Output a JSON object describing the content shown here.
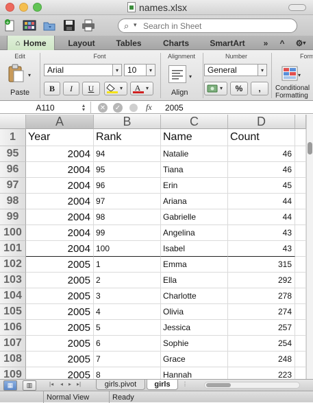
{
  "window": {
    "title": "names.xlsx"
  },
  "toolbar": {
    "icons": [
      "new-workbook-icon",
      "templates-icon",
      "open-icon",
      "save-icon",
      "print-icon"
    ],
    "search_placeholder": "Search in Sheet"
  },
  "ribbon": {
    "tabs": [
      {
        "label": "Home",
        "active": true
      },
      {
        "label": "Layout"
      },
      {
        "label": "Tables"
      },
      {
        "label": "Charts"
      },
      {
        "label": "SmartArt"
      }
    ],
    "more": "»",
    "collapse": "^",
    "gear": "⚙",
    "groups": {
      "edit": "Edit",
      "font": "Font",
      "alignment": "Alignment",
      "number": "Number",
      "format_partial": "Form"
    },
    "paste_label": "Paste",
    "font_name": "Arial",
    "font_size": "10",
    "bold": "B",
    "italic": "I",
    "underline": "U",
    "align_label": "Align",
    "number_format": "General",
    "percent": "%",
    "comma": ",",
    "conditional_label_1": "Conditional",
    "conditional_label_2": "Formatting",
    "font_color": "#d02020",
    "highlight_color": "#f4e219"
  },
  "formula_bar": {
    "cell_ref": "A110",
    "fx": "fx",
    "value": "2005"
  },
  "grid": {
    "columns": [
      "A",
      "B",
      "C",
      "D"
    ],
    "header_row": {
      "row": "1",
      "cells": [
        "Year",
        "Rank",
        "Name",
        "Count"
      ]
    },
    "rows": [
      {
        "row": "95",
        "cells": [
          "2004",
          "94",
          "Natalie",
          "46"
        ]
      },
      {
        "row": "96",
        "cells": [
          "2004",
          "95",
          "Tiana",
          "46"
        ]
      },
      {
        "row": "97",
        "cells": [
          "2004",
          "96",
          "Erin",
          "45"
        ]
      },
      {
        "row": "98",
        "cells": [
          "2004",
          "97",
          "Ariana",
          "44"
        ]
      },
      {
        "row": "99",
        "cells": [
          "2004",
          "98",
          "Gabrielle",
          "44"
        ]
      },
      {
        "row": "100",
        "cells": [
          "2004",
          "99",
          "Angelina",
          "43"
        ]
      },
      {
        "row": "101",
        "cells": [
          "2004",
          "100",
          "Isabel",
          "43"
        ]
      },
      {
        "row": "102",
        "cells": [
          "2005",
          "1",
          "Emma",
          "315"
        ]
      },
      {
        "row": "103",
        "cells": [
          "2005",
          "2",
          "Ella",
          "292"
        ]
      },
      {
        "row": "104",
        "cells": [
          "2005",
          "3",
          "Charlotte",
          "278"
        ]
      },
      {
        "row": "105",
        "cells": [
          "2005",
          "4",
          "Olivia",
          "274"
        ]
      },
      {
        "row": "106",
        "cells": [
          "2005",
          "5",
          "Jessica",
          "257"
        ]
      },
      {
        "row": "107",
        "cells": [
          "2005",
          "6",
          "Sophie",
          "254"
        ]
      },
      {
        "row": "108",
        "cells": [
          "2005",
          "7",
          "Grace",
          "248"
        ]
      },
      {
        "row": "109",
        "cells": [
          "2005",
          "8",
          "Hannah",
          "223"
        ]
      }
    ]
  },
  "sheets": {
    "tabs": [
      {
        "label": "girls.pivot",
        "active": false
      },
      {
        "label": "girls",
        "active": true
      }
    ]
  },
  "status": {
    "view": "Normal View",
    "state": "Ready"
  }
}
